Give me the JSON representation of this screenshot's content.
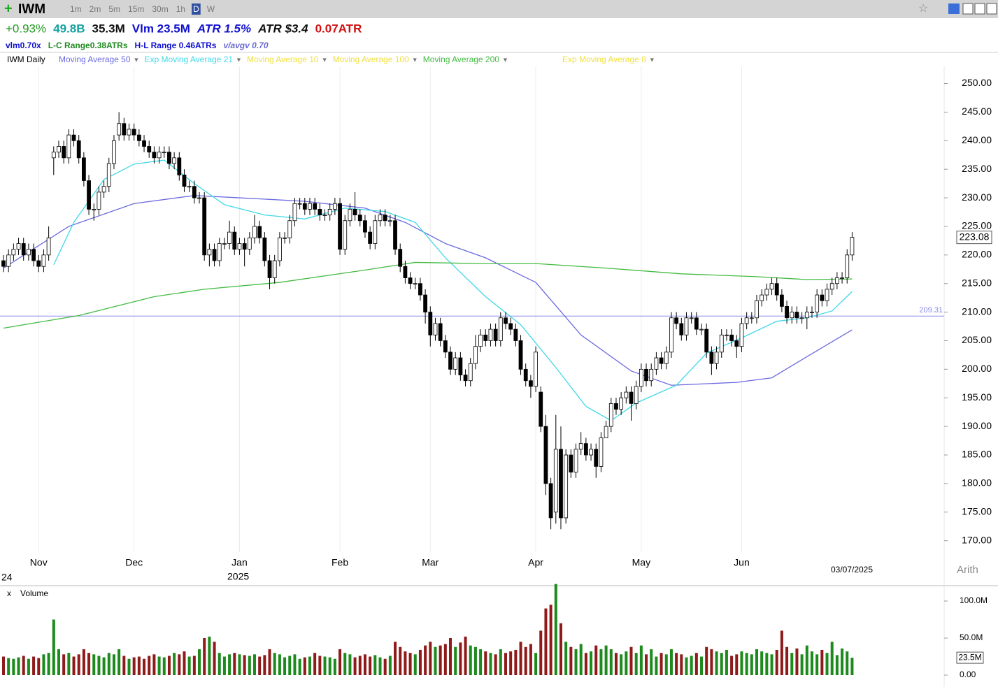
{
  "chart_data": {
    "type": "candlestick",
    "ticker": "IWM",
    "timeframes": [
      "1m",
      "2m",
      "5m",
      "15m",
      "30m",
      "1h",
      "D",
      "W"
    ],
    "stats_line1": [
      {
        "text": "+0.93%",
        "color": "#1e9a1e"
      },
      {
        "text": "49.8B",
        "color": "#14a0a0"
      },
      {
        "text": "35.3M",
        "color": "#111111"
      },
      {
        "text": "Vlm 23.5M",
        "color": "#1010d0"
      },
      {
        "text": "ATR 1.5%",
        "color": "#1010d0"
      },
      {
        "text": "ATR $3.4",
        "color": "#111111"
      },
      {
        "text": "0.07ATR",
        "color": "#d01010"
      }
    ],
    "stats_line2": [
      {
        "text": "vlm0.70x",
        "color": "#1010d0"
      },
      {
        "text": "L-C Range0.38ATRs",
        "color": "#1e8a1e"
      },
      {
        "text": "H-L Range 0.46ATRs",
        "color": "#1010d0"
      },
      {
        "text": "v/avgv 0.70",
        "color": "#6a6ad0"
      }
    ],
    "panel_label": "IWM Daily",
    "indicators": [
      {
        "name": "Moving Average 50",
        "color": "#6a6ae0",
        "x": [
          0,
          13,
          26,
          38,
          47,
          60,
          72,
          80,
          88,
          96,
          106,
          115,
          125,
          133,
          146,
          153,
          160,
          169
        ],
        "values": [
          217.7,
          225,
          229,
          230.4,
          230,
          229.4,
          228.2,
          225.7,
          222,
          219.5,
          215.2,
          206,
          199.7,
          197.2,
          197.7,
          198.5,
          202.2,
          206.9
        ]
      },
      {
        "name": "Exp Moving Average 21",
        "color": "#40d8e8",
        "x": [
          10,
          14,
          20,
          26,
          32,
          38,
          44,
          52,
          60,
          68,
          76,
          82,
          88,
          96,
          103,
          110,
          116,
          121,
          126,
          134,
          140,
          148,
          154,
          160,
          165,
          169
        ],
        "values": [
          218.3,
          225.7,
          233.2,
          235.9,
          236.6,
          232.5,
          228.8,
          227,
          226.3,
          228.2,
          227.6,
          225.7,
          219.5,
          212.7,
          207.8,
          200.3,
          193.5,
          191,
          194.1,
          197.2,
          202.8,
          205.9,
          208.4,
          209,
          210.2,
          213.6
        ]
      },
      {
        "name": "Moving Average 10",
        "color": "#f0e040"
      },
      {
        "name": "Moving Average 100",
        "color": "#f0e040"
      },
      {
        "name": "Moving Average 200",
        "color": "#44bb44",
        "x": [
          0,
          15,
          30,
          40,
          55,
          70,
          82,
          95,
          106,
          120,
          135,
          150,
          160,
          169
        ],
        "values": [
          207.2,
          209.4,
          212.7,
          214,
          215.2,
          217.1,
          218.7,
          218.5,
          218.5,
          217.7,
          216.7,
          216.2,
          215.7,
          215.8
        ]
      },
      {
        "name": "Exp Moving Average 8",
        "color": "#f0e040"
      }
    ],
    "hline": {
      "value": 209.31,
      "label": "209.31",
      "color": "#8888ee"
    },
    "categories": [
      null,
      null,
      null,
      null,
      null,
      null,
      null,
      "Nov",
      null,
      null,
      null,
      null,
      null,
      null,
      null,
      null,
      null,
      null,
      null,
      null,
      null,
      null,
      null,
      null,
      null,
      null,
      "Dec",
      null,
      null,
      null,
      null,
      null,
      null,
      null,
      null,
      null,
      null,
      null,
      null,
      null,
      null,
      null,
      null,
      null,
      null,
      null,
      null,
      "Jan",
      null,
      null,
      null,
      null,
      null,
      null,
      null,
      null,
      null,
      null,
      null,
      null,
      null,
      null,
      null,
      null,
      null,
      null,
      null,
      "Feb",
      null,
      null,
      null,
      null,
      null,
      null,
      null,
      null,
      null,
      null,
      null,
      null,
      null,
      null,
      null,
      null,
      null,
      "Mar",
      null,
      null,
      null,
      null,
      null,
      null,
      null,
      null,
      null,
      null,
      null,
      null,
      null,
      null,
      null,
      null,
      null,
      null,
      null,
      null,
      "Apr",
      null,
      null,
      null,
      null,
      null,
      null,
      null,
      null,
      null,
      null,
      null,
      null,
      null,
      null,
      null,
      null,
      null,
      null,
      null,
      null,
      "May",
      null,
      null,
      null,
      null,
      null,
      null,
      null,
      null,
      null,
      null,
      null,
      null,
      null,
      null,
      null,
      null,
      null,
      null,
      null,
      "Jun",
      null,
      null,
      null,
      null,
      null,
      null,
      null,
      null,
      null,
      null,
      null,
      null,
      null,
      null,
      null,
      null,
      null,
      null,
      null,
      null,
      null,
      null
    ],
    "year_label": "2025",
    "left_fragment": "24",
    "cursor_date": "03/07/2025",
    "scale_mode": "Arith",
    "candles": {
      "open": [
        219,
        218,
        220,
        221,
        222,
        220,
        221,
        219,
        218,
        220,
        237,
        238,
        239,
        237,
        241,
        240,
        237,
        233,
        228,
        228,
        231,
        232,
        236,
        241,
        243,
        241,
        242,
        241,
        240,
        239,
        238,
        237,
        238,
        238,
        236,
        237,
        234,
        232,
        232,
        230,
        230,
        220,
        221,
        219,
        222,
        222,
        224,
        221,
        222,
        221,
        223,
        225,
        223,
        219,
        216,
        219,
        223,
        223,
        226,
        229,
        229,
        228,
        229,
        228,
        227,
        227,
        228,
        229,
        221,
        226,
        228,
        227,
        226,
        224,
        222,
        226,
        227,
        226,
        226,
        221,
        218,
        216,
        215,
        215,
        213,
        210,
        206,
        208,
        205,
        203,
        200,
        202,
        199,
        198,
        201,
        204,
        206,
        205,
        207,
        205,
        209,
        208,
        207,
        205,
        200,
        198,
        197,
        196,
        190,
        180,
        175,
        186,
        174,
        185,
        182,
        186,
        187,
        185,
        186,
        183,
        188,
        190,
        194,
        193,
        195,
        196,
        194,
        197,
        200,
        198,
        200,
        202,
        201,
        203,
        209,
        208,
        206,
        209,
        209,
        207,
        207,
        203,
        201,
        203,
        206,
        206,
        205,
        204,
        208,
        209,
        209,
        212,
        213,
        214,
        215,
        213,
        211,
        209,
        210,
        209,
        209,
        210,
        210,
        213,
        212,
        214,
        215,
        216,
        216,
        220
      ],
      "high": [
        220,
        221,
        222,
        223,
        223,
        222,
        222,
        220,
        221,
        225,
        239,
        240,
        240,
        242,
        242,
        241,
        238,
        234,
        229,
        232,
        233,
        237,
        241,
        245,
        244,
        243,
        243,
        242,
        241,
        240,
        239,
        239,
        239,
        239,
        238,
        238,
        235,
        233,
        233,
        231,
        231,
        222,
        222,
        223,
        223,
        226,
        225,
        223,
        223,
        224,
        227,
        226,
        224,
        220,
        220,
        224,
        224,
        227,
        230,
        230,
        230,
        230,
        230,
        229,
        228,
        229,
        230,
        230,
        227,
        229,
        231,
        228,
        227,
        225,
        227,
        228,
        228,
        227,
        227,
        222,
        219,
        217,
        216,
        216,
        214,
        211,
        209,
        209,
        206,
        204,
        203,
        203,
        200,
        202,
        206,
        207,
        207,
        208,
        208,
        210,
        210,
        209,
        208,
        206,
        201,
        199,
        204,
        197,
        192,
        181,
        192,
        190,
        186,
        186,
        187,
        189,
        188,
        187,
        187,
        189,
        191,
        195,
        195,
        196,
        197,
        197,
        198,
        201,
        201,
        201,
        203,
        203,
        204,
        210,
        210,
        209,
        210,
        210,
        210,
        208,
        208,
        204,
        204,
        207,
        207,
        207,
        206,
        209,
        210,
        210,
        213,
        214,
        215,
        216,
        216,
        214,
        212,
        211,
        211,
        210,
        211,
        211,
        214,
        214,
        215,
        216,
        217,
        217,
        221,
        224
      ],
      "low": [
        217,
        217,
        219,
        220,
        219,
        219,
        218,
        217,
        217,
        219,
        234,
        237,
        236,
        236,
        239,
        236,
        232,
        227,
        226,
        227,
        230,
        231,
        235,
        240,
        240,
        240,
        240,
        239,
        238,
        237,
        236,
        236,
        237,
        235,
        235,
        233,
        231,
        231,
        229,
        229,
        219,
        218,
        218,
        218,
        221,
        221,
        220,
        220,
        218,
        220,
        222,
        222,
        218,
        214,
        215,
        218,
        222,
        222,
        225,
        228,
        227,
        227,
        227,
        226,
        226,
        226,
        227,
        220,
        220,
        225,
        226,
        225,
        223,
        221,
        221,
        225,
        225,
        225,
        220,
        217,
        215,
        214,
        214,
        212,
        208,
        204,
        205,
        204,
        202,
        199,
        199,
        198,
        197,
        197,
        200,
        203,
        204,
        204,
        204,
        204,
        207,
        206,
        204,
        199,
        197,
        195,
        196,
        189,
        178,
        172,
        173,
        172,
        173,
        181,
        181,
        185,
        184,
        184,
        181,
        182,
        189,
        189,
        192,
        192,
        194,
        191,
        193,
        196,
        197,
        197,
        199,
        200,
        200,
        202,
        207,
        205,
        205,
        208,
        206,
        206,
        202,
        199,
        200,
        202,
        205,
        204,
        202,
        203,
        207,
        208,
        208,
        211,
        212,
        213,
        212,
        210,
        208,
        208,
        208,
        208,
        207,
        209,
        209,
        211,
        211,
        213,
        214,
        215,
        215,
        219
      ],
      "close": [
        218,
        220,
        221,
        222,
        220,
        221,
        219,
        218,
        220,
        223,
        238,
        239,
        237,
        241,
        240,
        237,
        233,
        228,
        228,
        231,
        232,
        236,
        240,
        243,
        241,
        242,
        241,
        240,
        239,
        238,
        237,
        238,
        238,
        236,
        237,
        234,
        232,
        232,
        230,
        230,
        220,
        221,
        219,
        222,
        222,
        224,
        221,
        222,
        221,
        223,
        225,
        223,
        219,
        216,
        219,
        223,
        223,
        226,
        229,
        229,
        228,
        229,
        228,
        227,
        227,
        228,
        229,
        221,
        226,
        228,
        227,
        226,
        224,
        222,
        226,
        227,
        226,
        226,
        221,
        218,
        216,
        215,
        215,
        213,
        210,
        206,
        208,
        205,
        203,
        200,
        202,
        199,
        198,
        201,
        204,
        206,
        205,
        207,
        205,
        209,
        208,
        207,
        205,
        200,
        198,
        197,
        203,
        190,
        180,
        174,
        186,
        174,
        185,
        182,
        186,
        187,
        185,
        186,
        183,
        188,
        190,
        194,
        193,
        195,
        196,
        194,
        197,
        200,
        198,
        200,
        202,
        201,
        203,
        209,
        208,
        206,
        209,
        209,
        207,
        207,
        203,
        201,
        203,
        206,
        206,
        205,
        204,
        208,
        209,
        209,
        212,
        213,
        214,
        215,
        213,
        211,
        209,
        210,
        209,
        209,
        210,
        210,
        213,
        212,
        214,
        215,
        216,
        216,
        220,
        223.08
      ],
      "current_label": "223.08"
    },
    "ylim": [
      168,
      253
    ],
    "yticks": [
      {
        "value": 170,
        "label": "170.00"
      },
      {
        "value": 175,
        "label": "175.00"
      },
      {
        "value": 180,
        "label": "180.00"
      },
      {
        "value": 185,
        "label": "185.00"
      },
      {
        "value": 190,
        "label": "190.00"
      },
      {
        "value": 195,
        "label": "195.00"
      },
      {
        "value": 200,
        "label": "200.00"
      },
      {
        "value": 205,
        "label": "205.00"
      },
      {
        "value": 210,
        "label": "210.00"
      },
      {
        "value": 215,
        "label": "215.00"
      },
      {
        "value": 220,
        "label": "220.00"
      },
      {
        "value": 225,
        "label": "225.00"
      },
      {
        "value": 230,
        "label": "230.00"
      },
      {
        "value": 235,
        "label": "235.00"
      },
      {
        "value": 240,
        "label": "240.00"
      },
      {
        "value": 245,
        "label": "245.00"
      },
      {
        "value": 250,
        "label": "250.00"
      }
    ],
    "volume": {
      "name": "Volume",
      "up_color": "#1c8a1c",
      "down_color": "#8e1a1a",
      "values": [
        25,
        23,
        22,
        24,
        26,
        22,
        25,
        23,
        28,
        30,
        75,
        35,
        28,
        30,
        25,
        28,
        35,
        30,
        28,
        26,
        24,
        30,
        28,
        35,
        26,
        22,
        24,
        25,
        22,
        26,
        28,
        25,
        24,
        26,
        30,
        28,
        32,
        25,
        26,
        35,
        50,
        52,
        45,
        30,
        25,
        28,
        30,
        28,
        27,
        26,
        28,
        25,
        27,
        35,
        30,
        28,
        24,
        26,
        28,
        22,
        24,
        25,
        30,
        26,
        25,
        24,
        22,
        35,
        30,
        28,
        24,
        26,
        28,
        25,
        27,
        24,
        22,
        26,
        45,
        38,
        32,
        30,
        28,
        34,
        40,
        45,
        38,
        40,
        42,
        50,
        38,
        44,
        52,
        40,
        38,
        35,
        32,
        30,
        28,
        35,
        30,
        32,
        34,
        45,
        38,
        42,
        30,
        60,
        90,
        95,
        123,
        70,
        45,
        38,
        35,
        42,
        30,
        32,
        40,
        35,
        40,
        35,
        30,
        28,
        32,
        38,
        30,
        40,
        28,
        35,
        25,
        30,
        28,
        35,
        30,
        28,
        24,
        26,
        30,
        25,
        38,
        35,
        32,
        30,
        34,
        26,
        28,
        32,
        30,
        28,
        35,
        32,
        30,
        28,
        34,
        60,
        38,
        30,
        36,
        28,
        40,
        32,
        28,
        34,
        30,
        45,
        27,
        36,
        32,
        23.5
      ],
      "current_label": "23.5M",
      "ylim": [
        0,
        120
      ],
      "yticks": [
        {
          "value": 0,
          "label": "0.00"
        },
        {
          "value": 50,
          "label": "50.0M"
        },
        {
          "value": 100,
          "label": "100.0M"
        }
      ]
    }
  }
}
